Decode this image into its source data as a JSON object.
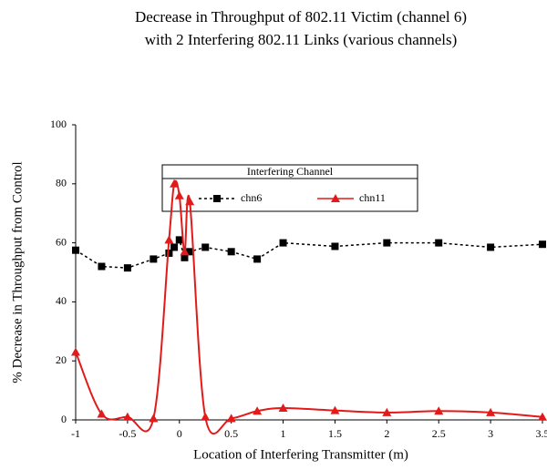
{
  "chart_data": {
    "type": "line",
    "title": "Decrease in Throughput of 802.11 Victim (channel 6)",
    "subtitle": "with 2 Interfering 802.11 Links (various channels)",
    "legend_title": "Interfering Channel",
    "legend": "top",
    "xlabel": "Location of Interfering Transmitter (m)",
    "ylabel": "% Decrease in Throughput from Control",
    "x": [
      -1,
      -0.75,
      -0.5,
      -0.25,
      -0.1,
      -0.05,
      0,
      0.05,
      0.1,
      0.25,
      0.5,
      0.75,
      1,
      1.5,
      2,
      2.5,
      3,
      3.5
    ],
    "series": [
      {
        "name": "chn6",
        "color": "#000000",
        "marker": "square",
        "line_style": "dotted",
        "smooth": false,
        "values": [
          57.5,
          52,
          51.5,
          54.5,
          56.5,
          58.5,
          61,
          55,
          57,
          58.5,
          57,
          54.5,
          60,
          58.8,
          60,
          60,
          58.5,
          59.5
        ]
      },
      {
        "name": "chn11",
        "color": "#e31a1a",
        "marker": "triangle",
        "line_style": "solid",
        "smooth": true,
        "values": [
          23,
          2,
          1,
          0.5,
          61,
          80,
          76,
          57,
          74,
          1,
          0.5,
          3,
          4,
          3.2,
          2.5,
          3,
          2.5,
          1
        ]
      }
    ],
    "xlim": [
      -1,
      3.5
    ],
    "xticks": [
      -1,
      -0.5,
      0,
      0.5,
      1,
      1.5,
      2,
      2.5,
      3,
      3.5
    ],
    "ylim": [
      0,
      100
    ],
    "yticks": [
      0,
      20,
      40,
      60,
      80,
      100
    ],
    "grid": false
  }
}
